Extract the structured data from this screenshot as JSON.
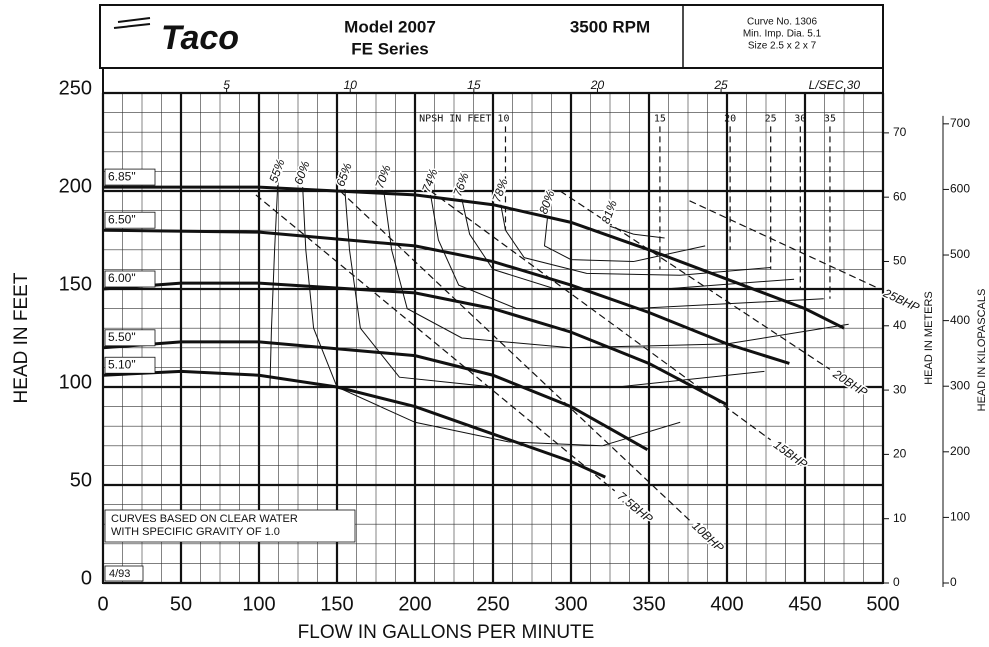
{
  "header": {
    "logo": "Taco",
    "model": "Model 2007",
    "series": "FE Series",
    "rpm": "3500 RPM",
    "curve_no": "Curve No. 1306",
    "min_imp": "Min. Imp. Dia. 5.1",
    "size": "Size 2.5 x 2 x 7"
  },
  "chart_data": {
    "type": "line",
    "xlabel": "FLOW IN GALLONS PER MINUTE",
    "ylabel": "HEAD IN FEET",
    "y2label": "HEAD IN METERS",
    "y3label": "HEAD IN KILOPASCALS",
    "notes": [
      "CURVES BASED ON CLEAR WATER",
      "WITH SPECIFIC GRAVITY OF 1.0"
    ],
    "date": "4/93",
    "xlim": [
      0,
      500
    ],
    "xticks": [
      0,
      50,
      100,
      150,
      200,
      250,
      300,
      350,
      400,
      450,
      500
    ],
    "ylim": [
      0,
      250
    ],
    "yticks": [
      0,
      50,
      100,
      150,
      200,
      250
    ],
    "x2lim": [
      0,
      31.55
    ],
    "x2ticks": [
      5,
      10,
      15,
      20,
      25,
      {
        "value": 30,
        "label": "L/SEC 30"
      }
    ],
    "y2lim": [
      0,
      76.2
    ],
    "y2ticks": [
      0,
      10,
      20,
      30,
      40,
      50,
      60,
      70
    ],
    "y3lim": [
      0,
      747
    ],
    "y3ticks": [
      0,
      100,
      200,
      300,
      400,
      500,
      600,
      700
    ],
    "grid": true,
    "series": [
      {
        "name": "6.85\"",
        "color": "#111",
        "x": [
          0,
          100,
          200,
          250,
          300,
          350,
          400,
          450,
          475
        ],
        "values": [
          202,
          202,
          198,
          193,
          184,
          170,
          155,
          140,
          130
        ]
      },
      {
        "name": "6.50\"",
        "color": "#111",
        "x": [
          0,
          100,
          200,
          250,
          300,
          350,
          400,
          440
        ],
        "values": [
          180,
          179,
          172,
          164,
          152,
          138,
          122,
          112
        ]
      },
      {
        "name": "6.00\"",
        "color": "#111",
        "x": [
          0,
          50,
          100,
          200,
          250,
          300,
          350,
          400
        ],
        "values": [
          150,
          153,
          153,
          148,
          140,
          128,
          112,
          91
        ]
      },
      {
        "name": "5.50\"",
        "color": "#111",
        "x": [
          0,
          50,
          100,
          200,
          250,
          300,
          349
        ],
        "values": [
          120,
          123,
          123,
          116,
          106,
          90,
          68
        ]
      },
      {
        "name": "5.10\"",
        "color": "#111",
        "x": [
          0,
          50,
          100,
          150,
          200,
          250,
          300,
          322
        ],
        "values": [
          106,
          108,
          106,
          100,
          90,
          76,
          62,
          54
        ]
      }
    ],
    "efficiency": [
      {
        "name": "55%",
        "x": [
          112,
          110,
          108,
          107
        ],
        "values": [
          203,
          170,
          130,
          100
        ]
      },
      {
        "name": "60%",
        "x": [
          128,
          130,
          135,
          150,
          200,
          260,
          320,
          370
        ],
        "values": [
          202,
          170,
          130,
          100,
          82,
          72,
          70,
          82
        ]
      },
      {
        "name": "65%",
        "x": [
          155,
          158,
          165,
          190,
          250,
          330,
          424
        ],
        "values": [
          201,
          170,
          130,
          105,
          100,
          100,
          108
        ]
      },
      {
        "name": "70%",
        "x": [
          180,
          185,
          195,
          230,
          300,
          400,
          478
        ],
        "values": [
          200,
          170,
          140,
          125,
          120,
          122,
          132
        ]
      },
      {
        "name": "74%",
        "x": [
          210,
          215,
          228,
          265,
          340,
          462
        ],
        "values": [
          198,
          175,
          152,
          140,
          140,
          145
        ]
      },
      {
        "name": "76%",
        "x": [
          230,
          235,
          250,
          290,
          360,
          443
        ],
        "values": [
          196,
          178,
          160,
          150,
          150,
          155
        ]
      },
      {
        "name": "78%",
        "x": [
          255,
          258,
          270,
          310,
          370,
          428
        ],
        "values": [
          193,
          180,
          166,
          158,
          157,
          161
        ]
      },
      {
        "name": "80%",
        "x": [
          285,
          283,
          300,
          340,
          386
        ],
        "values": [
          187,
          172,
          165,
          164,
          172
        ]
      },
      {
        "name": "81%",
        "x": [
          325,
          340,
          360
        ],
        "values": [
          182,
          178,
          176
        ]
      }
    ],
    "bhp": [
      {
        "name": "7.5BHP",
        "x": [
          98,
          328
        ],
        "values": [
          198,
          47
        ]
      },
      {
        "name": "10BHP",
        "x": [
          152,
          376
        ],
        "values": [
          200,
          32
        ]
      },
      {
        "name": "15BHP",
        "x": [
          210,
          428
        ],
        "values": [
          200,
          73
        ]
      },
      {
        "name": "20BHP",
        "x": [
          293,
          466
        ],
        "values": [
          200,
          109
        ]
      },
      {
        "name": "25BHP",
        "x": [
          376,
          498
        ],
        "values": [
          195,
          150
        ]
      }
    ],
    "npsh": [
      {
        "label": "NPSH IN FEET 10",
        "x": 258,
        "values": [
          233,
          180
        ]
      },
      {
        "label": "15",
        "x": 357,
        "values": [
          233,
          160
        ]
      },
      {
        "label": "20",
        "x": 402,
        "values": [
          233,
          170
        ]
      },
      {
        "label": "25",
        "x": 428,
        "values": [
          233,
          160
        ]
      },
      {
        "label": "30",
        "x": 447,
        "values": [
          233,
          150
        ]
      },
      {
        "label": "35",
        "x": 466,
        "values": [
          233,
          145
        ]
      }
    ]
  }
}
